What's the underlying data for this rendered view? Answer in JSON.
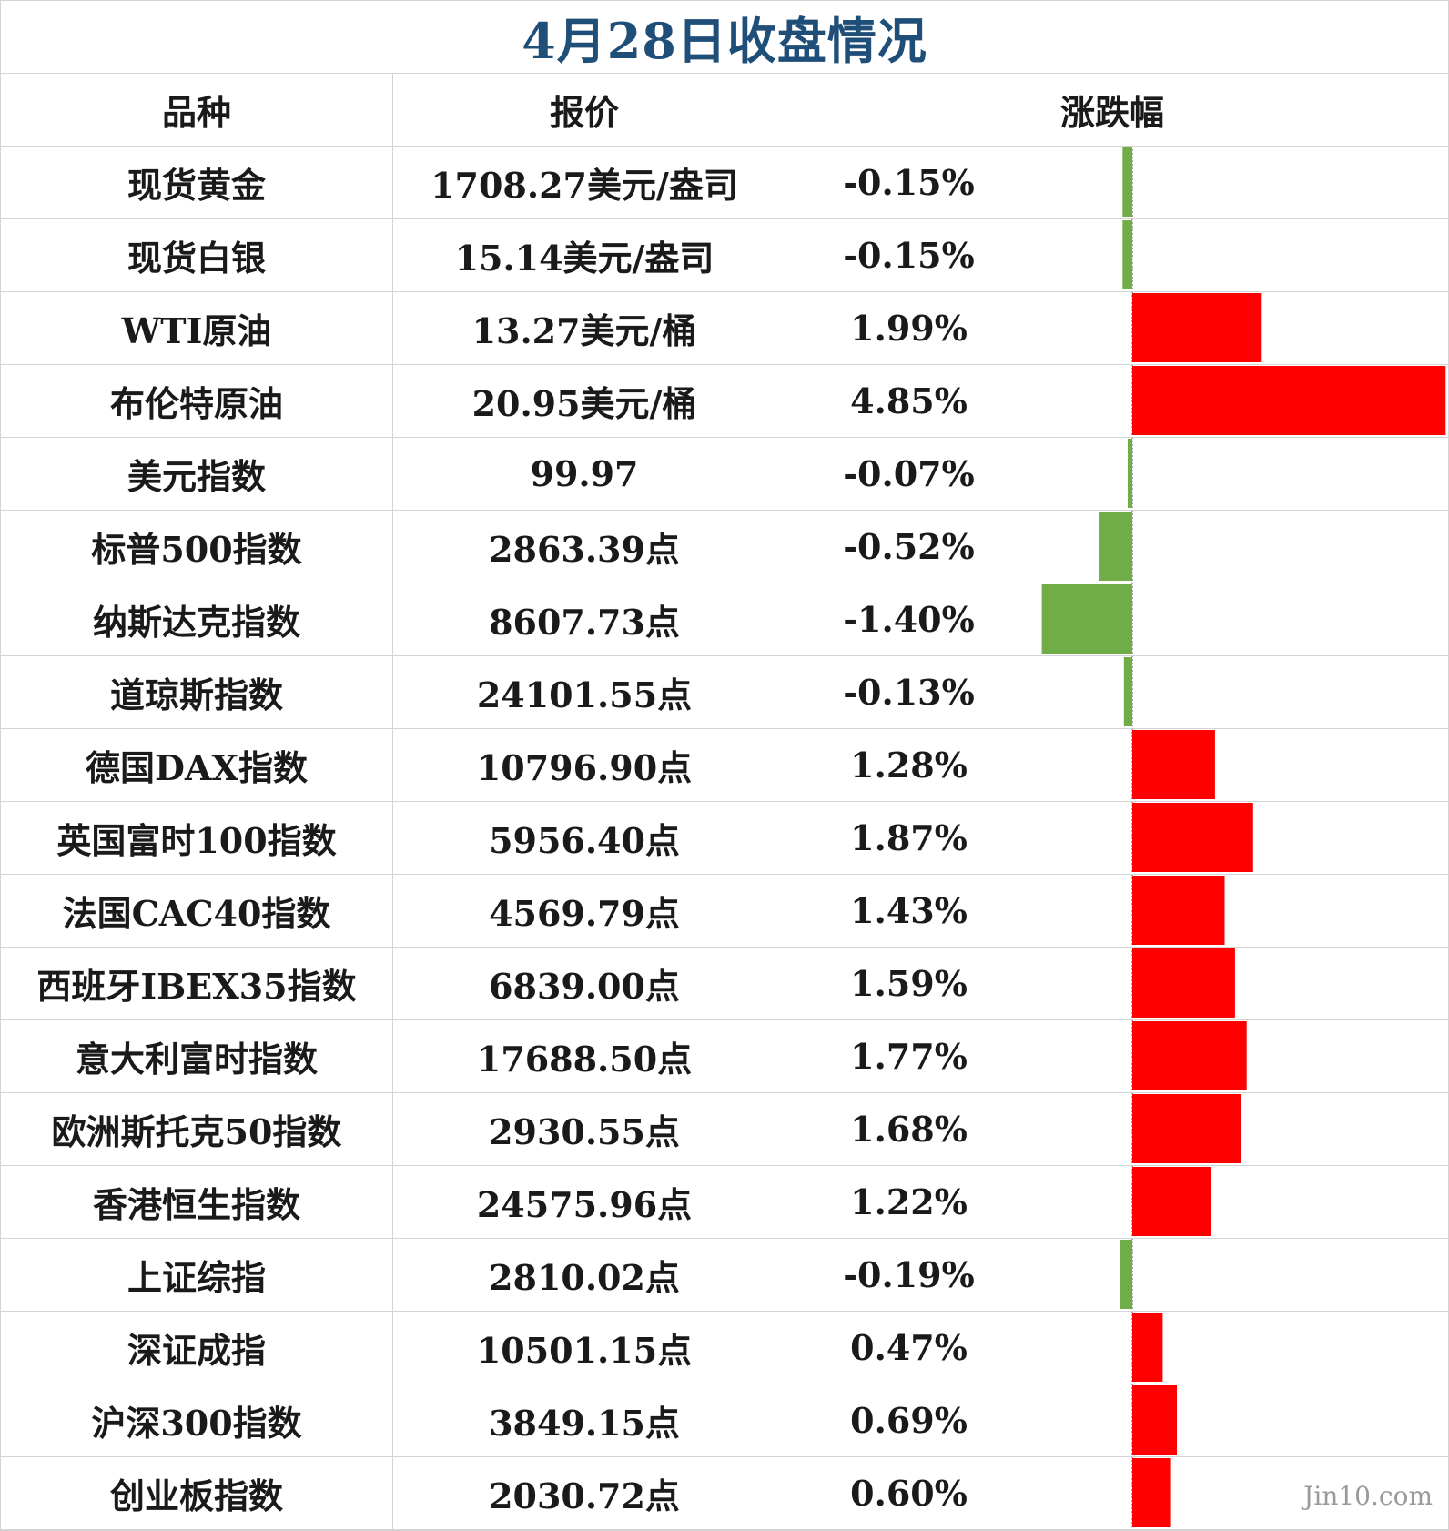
{
  "title": "4月28日收盘情况",
  "headers": {
    "name": "品种",
    "price": "报价",
    "change": "涨跌幅"
  },
  "watermark": "Jin10.com",
  "colors": {
    "up": "#ff0000",
    "down": "#70ad47",
    "title": "#1f4e79",
    "grid": "#d4d4d4"
  },
  "rows": [
    {
      "name": "现货黄金",
      "price": "1708.27美元/盎司",
      "pct": "-0.15%"
    },
    {
      "name": "现货白银",
      "price": "15.14美元/盎司",
      "pct": "-0.15%"
    },
    {
      "name": "WTI原油",
      "price": "13.27美元/桶",
      "pct": "1.99%"
    },
    {
      "name": "布伦特原油",
      "price": "20.95美元/桶",
      "pct": "4.85%"
    },
    {
      "name": "美元指数",
      "price": "99.97",
      "pct": "-0.07%"
    },
    {
      "name": "标普500指数",
      "price": "2863.39点",
      "pct": "-0.52%"
    },
    {
      "name": "纳斯达克指数",
      "price": "8607.73点",
      "pct": "-1.40%"
    },
    {
      "name": "道琼斯指数",
      "price": "24101.55点",
      "pct": "-0.13%"
    },
    {
      "name": "德国DAX指数",
      "price": "10796.90点",
      "pct": "1.28%"
    },
    {
      "name": "英国富时100指数",
      "price": "5956.40点",
      "pct": "1.87%"
    },
    {
      "name": "法国CAC40指数",
      "price": "4569.79点",
      "pct": "1.43%"
    },
    {
      "name": "西班牙IBEX35指数",
      "price": "6839.00点",
      "pct": "1.59%"
    },
    {
      "name": "意大利富时指数",
      "price": "17688.50点",
      "pct": "1.77%"
    },
    {
      "name": "欧洲斯托克50指数",
      "price": "2930.55点",
      "pct": "1.68%"
    },
    {
      "name": "香港恒生指数",
      "price": "24575.96点",
      "pct": "1.22%"
    },
    {
      "name": "上证综指",
      "price": "2810.02点",
      "pct": "-0.19%"
    },
    {
      "name": "深证成指",
      "price": "10501.15点",
      "pct": "0.47%"
    },
    {
      "name": "沪深300指数",
      "price": "3849.15点",
      "pct": "0.69%"
    },
    {
      "name": "创业板指数",
      "price": "2030.72点",
      "pct": "0.60%"
    }
  ],
  "chart_data": {
    "type": "bar",
    "orientation": "horizontal",
    "categories": [
      "现货黄金",
      "现货白银",
      "WTI原油",
      "布伦特原油",
      "美元指数",
      "标普500指数",
      "纳斯达克指数",
      "道琼斯指数",
      "德国DAX指数",
      "英国富时100指数",
      "法国CAC40指数",
      "西班牙IBEX35指数",
      "意大利富时指数",
      "欧洲斯托克50指数",
      "香港恒生指数",
      "上证综指",
      "深证成指",
      "沪深300指数",
      "创业板指数"
    ],
    "values": [
      -0.15,
      -0.15,
      1.99,
      4.85,
      -0.07,
      -0.52,
      -1.4,
      -0.13,
      1.28,
      1.87,
      1.43,
      1.59,
      1.77,
      1.68,
      1.22,
      -0.19,
      0.47,
      0.69,
      0.6
    ],
    "xlim": [
      -1.4,
      4.85
    ],
    "grid": true
  }
}
